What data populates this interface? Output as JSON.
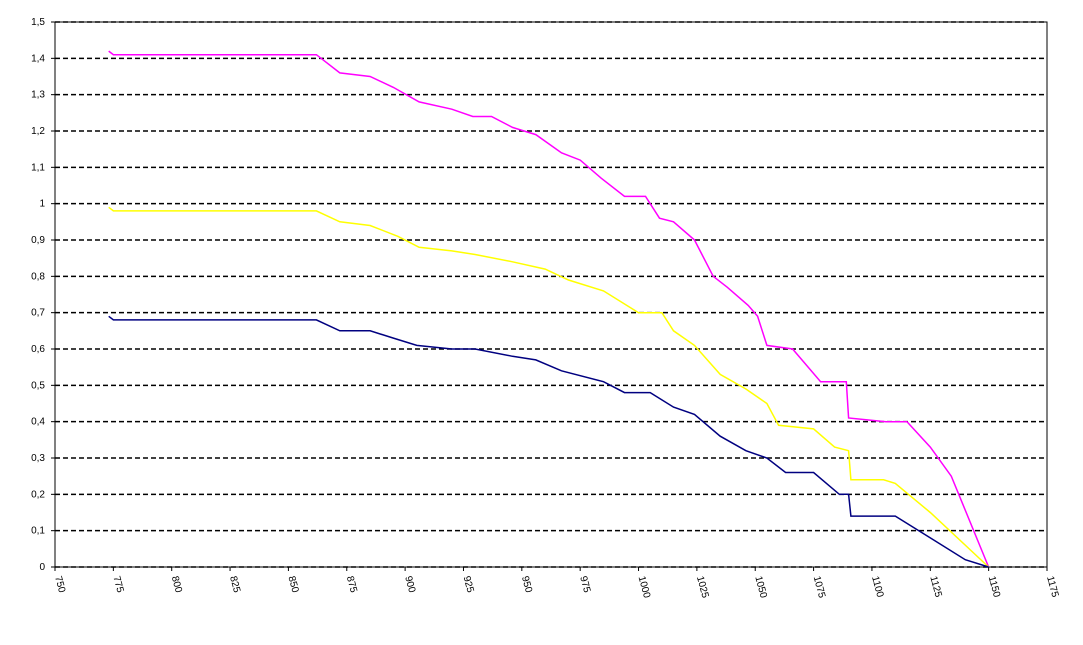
{
  "chart_data": {
    "type": "line",
    "xlim": [
      750,
      1175
    ],
    "xticks": [
      750,
      775,
      800,
      825,
      850,
      875,
      900,
      925,
      950,
      975,
      1000,
      1025,
      1050,
      1075,
      1100,
      1125,
      1150,
      1175
    ],
    "ylim": [
      0,
      1.5
    ],
    "yticks": [
      0,
      {
        "value": 0.1,
        "label": "0,1"
      },
      {
        "value": 0.2,
        "label": "0,2"
      },
      {
        "value": 0.3,
        "label": "0,3"
      },
      {
        "value": 0.4,
        "label": "0,4"
      },
      {
        "value": 0.5,
        "label": "0,5"
      },
      {
        "value": 0.6,
        "label": "0,6"
      },
      {
        "value": 0.7,
        "label": "0,7"
      },
      {
        "value": 0.8,
        "label": "0,8"
      },
      {
        "value": 0.9,
        "label": "0,9"
      },
      1,
      {
        "value": 1.1,
        "label": "1,1"
      },
      {
        "value": 1.2,
        "label": "1,2"
      },
      {
        "value": 1.3,
        "label": "1,3"
      },
      {
        "value": 1.4,
        "label": "1,4"
      },
      {
        "value": 1.5,
        "label": "1,5"
      }
    ],
    "grid": true,
    "series": [
      {
        "color": "#ff00ff",
        "x": [
          773,
          775,
          862,
          872,
          885,
          895,
          906,
          920,
          929,
          937,
          946,
          956,
          967,
          975,
          984,
          994,
          1003,
          1009,
          1015,
          1024,
          1032,
          1038,
          1047,
          1051,
          1055,
          1066,
          1078,
          1089,
          1090,
          1106,
          1115,
          1125,
          1134,
          1150
        ],
        "values": [
          1.42,
          1.41,
          1.41,
          1.36,
          1.35,
          1.32,
          1.28,
          1.26,
          1.24,
          1.24,
          1.21,
          1.19,
          1.14,
          1.12,
          1.07,
          1.02,
          1.02,
          0.96,
          0.95,
          0.9,
          0.8,
          0.77,
          0.72,
          0.69,
          0.61,
          0.6,
          0.51,
          0.51,
          0.41,
          0.4,
          0.4,
          0.33,
          0.25,
          0
        ]
      },
      {
        "color": "#ffff00",
        "x": [
          773,
          775,
          862,
          872,
          885,
          897,
          906,
          920,
          930,
          946,
          960,
          970,
          985,
          1000,
          1010,
          1015,
          1024,
          1035,
          1046,
          1055,
          1060,
          1075,
          1084,
          1090,
          1091,
          1105,
          1110,
          1125,
          1150
        ],
        "values": [
          0.99,
          0.98,
          0.98,
          0.95,
          0.94,
          0.91,
          0.88,
          0.87,
          0.86,
          0.84,
          0.82,
          0.79,
          0.76,
          0.7,
          0.7,
          0.65,
          0.61,
          0.53,
          0.49,
          0.45,
          0.39,
          0.38,
          0.33,
          0.32,
          0.24,
          0.24,
          0.23,
          0.15,
          0
        ]
      },
      {
        "color": "#000080",
        "x": [
          773,
          775,
          862,
          872,
          885,
          895,
          905,
          920,
          930,
          946,
          956,
          967,
          985,
          994,
          1005,
          1015,
          1024,
          1035,
          1046,
          1055,
          1063,
          1075,
          1086,
          1090,
          1091,
          1110,
          1125,
          1140,
          1150
        ],
        "values": [
          0.69,
          0.68,
          0.68,
          0.65,
          0.65,
          0.63,
          0.61,
          0.6,
          0.6,
          0.58,
          0.57,
          0.54,
          0.51,
          0.48,
          0.48,
          0.44,
          0.42,
          0.36,
          0.32,
          0.3,
          0.26,
          0.26,
          0.2,
          0.2,
          0.14,
          0.14,
          0.08,
          0.02,
          0
        ]
      }
    ]
  }
}
